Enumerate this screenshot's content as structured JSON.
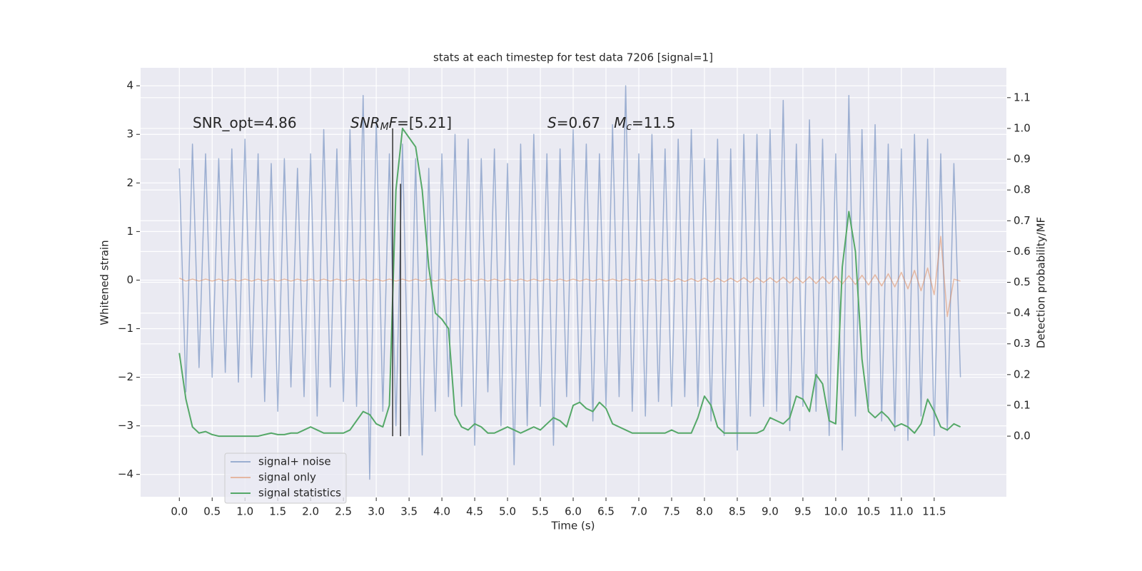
{
  "chart_data": {
    "type": "line",
    "title": "stats at each timestep for test data 7206 [signal=1]",
    "x_label": "Time (s)",
    "y_label": "Whitened strain",
    "y2_label": "Detection probability/MF",
    "x": [
      0,
      0.1,
      0.2,
      0.3,
      0.4,
      0.5,
      0.6,
      0.7,
      0.8,
      0.9,
      1,
      1.1,
      1.2,
      1.3,
      1.4,
      1.5,
      1.6,
      1.7,
      1.8,
      1.9,
      2,
      2.1,
      2.2,
      2.3,
      2.4,
      2.5,
      2.6,
      2.7,
      2.8,
      2.9,
      3,
      3.1,
      3.2,
      3.3,
      3.4,
      3.5,
      3.6,
      3.7,
      3.8,
      3.9,
      4,
      4.1,
      4.2,
      4.3,
      4.4,
      4.5,
      4.6,
      4.7,
      4.8,
      4.9,
      5,
      5.1,
      5.2,
      5.3,
      5.4,
      5.5,
      5.6,
      5.7,
      5.8,
      5.9,
      6,
      6.1,
      6.2,
      6.3,
      6.4,
      6.5,
      6.6,
      6.7,
      6.8,
      6.9,
      7,
      7.1,
      7.2,
      7.3,
      7.4,
      7.5,
      7.6,
      7.7,
      7.8,
      7.9,
      8,
      8.1,
      8.2,
      8.3,
      8.4,
      8.5,
      8.6,
      8.7,
      8.8,
      8.9,
      9,
      9.1,
      9.2,
      9.3,
      9.4,
      9.5,
      9.6,
      9.7,
      9.8,
      9.9,
      10,
      10.1,
      10.2,
      10.3,
      10.4,
      10.5,
      10.6,
      10.7,
      10.8,
      10.9,
      11,
      11.1,
      11.2,
      11.3,
      11.4,
      11.5,
      11.6,
      11.7,
      11.8,
      11.9
    ],
    "series": [
      {
        "name": "signal+ noise",
        "color": "#4c72b0",
        "opacity": 0.5,
        "axis": "y",
        "values": [
          2.3,
          -2.3,
          2.8,
          -1.8,
          2.6,
          -2.0,
          2.5,
          -1.9,
          2.7,
          -2.1,
          2.9,
          -2.0,
          2.6,
          -2.5,
          2.4,
          -2.7,
          2.5,
          -2.2,
          2.3,
          -2.4,
          2.6,
          -2.8,
          3.1,
          -2.2,
          2.7,
          -2.5,
          3.1,
          -2.6,
          3.8,
          -4.1,
          3.3,
          -2.7,
          2.6,
          -3.0,
          2.8,
          -3.2,
          2.5,
          -3.6,
          2.3,
          -2.7,
          2.6,
          -2.4,
          3.0,
          -2.6,
          2.9,
          -3.4,
          2.5,
          -2.3,
          2.7,
          -3.0,
          2.4,
          -3.8,
          2.8,
          -3.0,
          3.0,
          -2.6,
          2.6,
          -3.4,
          2.7,
          -2.4,
          3.1,
          -2.5,
          2.8,
          -2.9,
          2.6,
          -2.6,
          3.2,
          -2.4,
          4.0,
          -2.7,
          2.6,
          -2.8,
          3.0,
          -2.5,
          2.7,
          -2.6,
          2.9,
          -2.4,
          3.1,
          -2.6,
          2.5,
          -2.9,
          2.9,
          -3.2,
          2.7,
          -3.5,
          3.0,
          -2.8,
          3.0,
          -2.6,
          3.1,
          -2.7,
          3.7,
          -3.1,
          2.8,
          -2.6,
          3.3,
          -2.7,
          2.9,
          -3.2,
          2.6,
          -3.5,
          3.8,
          -2.8,
          3.1,
          -2.6,
          3.2,
          -2.9,
          2.8,
          -3.1,
          2.7,
          -3.3,
          3.0,
          -2.8,
          2.9,
          -3.2,
          2.6,
          -3.1,
          2.4,
          -2.0
        ]
      },
      {
        "name": "signal only",
        "color": "#dd8452",
        "opacity": 0.5,
        "axis": "y",
        "values": [
          0.04,
          -0.02,
          0.02,
          -0.02,
          0.02,
          -0.02,
          0.02,
          -0.02,
          0.02,
          -0.02,
          0.02,
          -0.02,
          0.02,
          -0.02,
          0.02,
          -0.02,
          0.02,
          -0.02,
          0.02,
          -0.02,
          0.02,
          -0.02,
          0.02,
          -0.02,
          0.02,
          -0.02,
          0.02,
          -0.02,
          0.02,
          -0.02,
          0.02,
          -0.02,
          0.02,
          -0.02,
          0.02,
          -0.02,
          0.02,
          -0.02,
          0.02,
          -0.02,
          0.02,
          -0.02,
          0.02,
          -0.02,
          0.02,
          -0.02,
          0.02,
          -0.02,
          0.02,
          -0.02,
          0.02,
          -0.02,
          0.02,
          -0.02,
          0.02,
          -0.02,
          0.02,
          -0.02,
          0.02,
          -0.02,
          0.02,
          -0.02,
          0.02,
          -0.02,
          0.02,
          -0.02,
          0.02,
          -0.02,
          0.02,
          -0.02,
          0.02,
          -0.02,
          0.02,
          -0.02,
          0.02,
          -0.03,
          0.03,
          -0.03,
          0.03,
          -0.03,
          0.04,
          -0.04,
          0.04,
          -0.04,
          0.04,
          -0.04,
          0.05,
          -0.05,
          0.05,
          -0.05,
          0.05,
          -0.05,
          0.06,
          -0.06,
          0.06,
          -0.06,
          0.07,
          -0.07,
          0.07,
          -0.07,
          0.08,
          -0.08,
          0.09,
          -0.09,
          0.1,
          -0.1,
          0.11,
          -0.12,
          0.13,
          -0.14,
          0.16,
          -0.18,
          0.2,
          -0.22,
          0.25,
          -0.3,
          0.9,
          -0.75,
          0.02,
          -0.02
        ]
      },
      {
        "name": "signal statistics",
        "color": "#55a868",
        "opacity": 1,
        "axis": "y2",
        "values": [
          0.27,
          0.12,
          0.03,
          0.01,
          0.015,
          0.005,
          0,
          0,
          0,
          0,
          0,
          0,
          0,
          0.005,
          0.01,
          0.005,
          0.005,
          0.01,
          0.01,
          0.02,
          0.03,
          0.02,
          0.01,
          0.01,
          0.01,
          0.01,
          0.02,
          0.05,
          0.08,
          0.07,
          0.04,
          0.03,
          0.1,
          0.8,
          1.0,
          0.97,
          0.94,
          0.8,
          0.55,
          0.4,
          0.38,
          0.35,
          0.07,
          0.03,
          0.02,
          0.04,
          0.03,
          0.01,
          0.01,
          0.02,
          0.03,
          0.02,
          0.01,
          0.02,
          0.03,
          0.02,
          0.04,
          0.06,
          0.05,
          0.03,
          0.1,
          0.11,
          0.09,
          0.08,
          0.11,
          0.09,
          0.04,
          0.03,
          0.02,
          0.01,
          0.01,
          0.01,
          0.01,
          0.01,
          0.01,
          0.02,
          0.01,
          0.01,
          0.01,
          0.06,
          0.13,
          0.1,
          0.03,
          0.01,
          0.01,
          0.01,
          0.01,
          0.01,
          0.01,
          0.02,
          0.06,
          0.05,
          0.04,
          0.06,
          0.13,
          0.12,
          0.08,
          0.2,
          0.17,
          0.05,
          0.04,
          0.55,
          0.73,
          0.6,
          0.25,
          0.08,
          0.06,
          0.08,
          0.06,
          0.03,
          0.04,
          0.03,
          0.01,
          0.04,
          0.12,
          0.08,
          0.03,
          0.02,
          0.04,
          0.03
        ]
      }
    ],
    "vlines": {
      "color": "#333333",
      "x": [
        3.25,
        3.37
      ],
      "ymin": [
        0,
        0
      ],
      "ymax": [
        1.0,
        0.82
      ]
    },
    "annotations": [
      [
        {
          "text": "SNR_opt=4.86"
        }
      ],
      [
        {
          "text": "SNR",
          "italic": true
        },
        {
          "text": "M",
          "italic": true,
          "sub": true
        },
        {
          "text": "F",
          "italic": true
        },
        {
          "text": "=[5.21]"
        }
      ],
      [
        {
          "text": "S",
          "italic": true
        },
        {
          "text": "=0.67   "
        },
        {
          "text": "M",
          "italic": true
        },
        {
          "text": "c",
          "italic": true,
          "sub": true
        },
        {
          "text": "=11.5"
        }
      ]
    ],
    "xlim": [
      -0.59,
      12.6
    ],
    "ylim": [
      -4.46,
      4.37
    ],
    "y2lim": [
      -0.197,
      1.197
    ],
    "xticks": [
      {
        "value": 0,
        "label": "0.0"
      },
      0.5,
      {
        "value": 1,
        "label": "1.0"
      },
      1.5,
      {
        "value": 2,
        "label": "2.0"
      },
      2.5,
      {
        "value": 3,
        "label": "3.0"
      },
      3.5,
      {
        "value": 4,
        "label": "4.0"
      },
      4.5,
      {
        "value": 5,
        "label": "5.0"
      },
      5.5,
      {
        "value": 6,
        "label": "6.0"
      },
      6.5,
      {
        "value": 7,
        "label": "7.0"
      },
      7.5,
      {
        "value": 8,
        "label": "8.0"
      },
      8.5,
      {
        "value": 9,
        "label": "9.0"
      },
      9.5,
      {
        "value": 10,
        "label": "10.0"
      },
      10.5,
      {
        "value": 11,
        "label": "11.0"
      },
      11.5
    ],
    "yticks": [
      {
        "value": -4,
        "label": "−4"
      },
      {
        "value": -3,
        "label": "−3"
      },
      {
        "value": -2,
        "label": "−2"
      },
      {
        "value": -1,
        "label": "−1"
      },
      0,
      1,
      2,
      3,
      4
    ],
    "y2ticks": [
      {
        "value": 0,
        "label": "0.0"
      },
      0.1,
      0.2,
      0.3,
      0.4,
      0.5,
      0.6,
      0.7,
      0.8,
      0.9,
      {
        "value": 1,
        "label": "1.0"
      },
      1.1
    ],
    "grid": true,
    "legend": "lower left",
    "background": "#eaeaf2"
  }
}
